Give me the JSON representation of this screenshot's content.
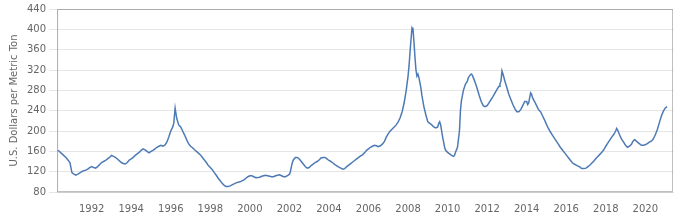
{
  "chart_data": {
    "type": "line",
    "ylabel": "U.S. Dollars per Metric Ton",
    "color": "#4d7ab5",
    "grid": "y",
    "xlim": [
      1990.25,
      2021.4
    ],
    "xticks": [
      1992,
      1994,
      1996,
      1998,
      2000,
      2002,
      2004,
      2006,
      2008,
      2010,
      2012,
      2014,
      2016,
      2018,
      2020
    ],
    "ylim": [
      80,
      440
    ],
    "yticks": [
      80,
      120,
      160,
      200,
      240,
      280,
      320,
      360,
      400,
      440
    ],
    "x": [
      1990.3,
      1990.5,
      1990.7,
      1990.9,
      1991.0,
      1991.1,
      1991.2,
      1991.3,
      1991.5,
      1991.6,
      1991.7,
      1991.8,
      1991.9,
      1992.0,
      1992.1,
      1992.2,
      1992.3,
      1992.5,
      1992.6,
      1992.7,
      1992.8,
      1992.9,
      1993.0,
      1993.1,
      1993.2,
      1993.3,
      1993.5,
      1993.6,
      1993.7,
      1993.8,
      1993.9,
      1994.0,
      1994.1,
      1994.2,
      1994.3,
      1994.4,
      1994.5,
      1994.6,
      1994.7,
      1994.8,
      1994.9,
      1995.0,
      1995.1,
      1995.2,
      1995.3,
      1995.4,
      1995.5,
      1995.6,
      1995.7,
      1995.8,
      1995.9,
      1996.0,
      1996.1,
      1996.15,
      1996.22,
      1996.3,
      1996.4,
      1996.5,
      1996.6,
      1996.7,
      1996.8,
      1996.9,
      1997.0,
      1997.1,
      1997.2,
      1997.3,
      1997.5,
      1997.6,
      1997.7,
      1997.8,
      1997.9,
      1998.0,
      1998.1,
      1998.2,
      1998.3,
      1998.4,
      1998.5,
      1998.6,
      1998.7,
      1998.8,
      1998.9,
      1999.0,
      1999.1,
      1999.2,
      1999.3,
      1999.5,
      1999.6,
      1999.7,
      1999.8,
      1999.9,
      2000.0,
      2000.1,
      2000.2,
      2000.3,
      2000.5,
      2000.6,
      2000.7,
      2000.8,
      2000.9,
      2001.0,
      2001.1,
      2001.2,
      2001.3,
      2001.5,
      2001.6,
      2001.7,
      2001.8,
      2001.9,
      2002.0,
      2002.05,
      2002.1,
      2002.15,
      2002.2,
      2002.3,
      2002.4,
      2002.5,
      2002.6,
      2002.7,
      2002.8,
      2002.9,
      2003.0,
      2003.1,
      2003.2,
      2003.3,
      2003.4,
      2003.5,
      2003.6,
      2003.7,
      2003.8,
      2003.9,
      2004.0,
      2004.1,
      2004.2,
      2004.3,
      2004.5,
      2004.6,
      2004.7,
      2004.8,
      2004.9,
      2005.0,
      2005.1,
      2005.2,
      2005.3,
      2005.4,
      2005.5,
      2005.6,
      2005.7,
      2005.8,
      2005.9,
      2006.0,
      2006.1,
      2006.2,
      2006.3,
      2006.4,
      2006.5,
      2006.6,
      2006.7,
      2006.8,
      2006.9,
      2007.0,
      2007.1,
      2007.2,
      2007.3,
      2007.4,
      2007.5,
      2007.6,
      2007.7,
      2007.8,
      2007.9,
      2008.0,
      2008.05,
      2008.1,
      2008.15,
      2008.2,
      2008.25,
      2008.3,
      2008.35,
      2008.4,
      2008.45,
      2008.5,
      2008.55,
      2008.6,
      2008.65,
      2008.7,
      2008.8,
      2008.9,
      2009.0,
      2009.1,
      2009.2,
      2009.3,
      2009.4,
      2009.5,
      2009.55,
      2009.6,
      2009.65,
      2009.7,
      2009.75,
      2009.8,
      2009.85,
      2009.9,
      2010.0,
      2010.1,
      2010.2,
      2010.3,
      2010.35,
      2010.4,
      2010.5,
      2010.6,
      2010.65,
      2010.7,
      2010.8,
      2010.9,
      2011.0,
      2011.05,
      2011.1,
      2011.15,
      2011.2,
      2011.25,
      2011.3,
      2011.4,
      2011.5,
      2011.6,
      2011.7,
      2011.8,
      2011.9,
      2012.0,
      2012.1,
      2012.2,
      2012.3,
      2012.4,
      2012.5,
      2012.6,
      2012.65,
      2012.7,
      2012.75,
      2012.8,
      2012.9,
      2013.0,
      2013.1,
      2013.2,
      2013.3,
      2013.4,
      2013.5,
      2013.6,
      2013.7,
      2013.8,
      2013.9,
      2014.0,
      2014.05,
      2014.1,
      2014.15,
      2014.2,
      2014.25,
      2014.3,
      2014.4,
      2014.5,
      2014.6,
      2014.7,
      2014.8,
      2014.9,
      2015.0,
      2015.1,
      2015.2,
      2015.3,
      2015.4,
      2015.5,
      2015.6,
      2015.7,
      2015.8,
      2015.9,
      2016.0,
      2016.1,
      2016.2,
      2016.3,
      2016.4,
      2016.5,
      2016.6,
      2016.7,
      2016.75,
      2016.8,
      2016.9,
      2017.0,
      2017.1,
      2017.2,
      2017.3,
      2017.4,
      2017.5,
      2017.6,
      2017.7,
      2017.8,
      2017.9,
      2018.0,
      2018.1,
      2018.2,
      2018.3,
      2018.4,
      2018.5,
      2018.55,
      2018.6,
      2018.65,
      2018.7,
      2018.8,
      2018.9,
      2019.0,
      2019.1,
      2019.2,
      2019.3,
      2019.35,
      2019.4,
      2019.45,
      2019.5,
      2019.6,
      2019.7,
      2019.8,
      2019.9,
      2020.0,
      2020.1,
      2020.2,
      2020.3,
      2020.4,
      2020.5,
      2020.6,
      2020.7,
      2020.8,
      2020.9,
      2021.0,
      2021.1
    ],
    "values": [
      162,
      155,
      148,
      138,
      118,
      115,
      113,
      115,
      120,
      122,
      123,
      125,
      128,
      130,
      128,
      127,
      130,
      138,
      140,
      142,
      145,
      148,
      152,
      150,
      148,
      145,
      138,
      136,
      135,
      138,
      143,
      145,
      148,
      152,
      155,
      158,
      162,
      165,
      163,
      160,
      157,
      160,
      162,
      165,
      168,
      170,
      172,
      170,
      172,
      178,
      188,
      200,
      208,
      215,
      245,
      225,
      212,
      208,
      200,
      192,
      183,
      175,
      170,
      167,
      163,
      160,
      153,
      148,
      143,
      138,
      132,
      128,
      124,
      118,
      113,
      107,
      102,
      97,
      93,
      91,
      91,
      92,
      94,
      96,
      98,
      100,
      102,
      104,
      107,
      110,
      112,
      112,
      110,
      108,
      109,
      111,
      112,
      113,
      112,
      111,
      110,
      110,
      112,
      114,
      112,
      110,
      110,
      112,
      115,
      120,
      130,
      138,
      143,
      148,
      148,
      145,
      140,
      135,
      130,
      127,
      128,
      132,
      135,
      138,
      140,
      143,
      147,
      148,
      148,
      145,
      142,
      140,
      137,
      134,
      129,
      127,
      125,
      126,
      130,
      133,
      136,
      139,
      142,
      145,
      148,
      151,
      153,
      157,
      162,
      165,
      168,
      170,
      172,
      171,
      169,
      171,
      174,
      179,
      188,
      195,
      200,
      204,
      208,
      212,
      218,
      226,
      238,
      255,
      278,
      308,
      328,
      355,
      380,
      403,
      400,
      375,
      345,
      320,
      308,
      312,
      305,
      295,
      285,
      270,
      248,
      232,
      218,
      215,
      212,
      208,
      206,
      208,
      215,
      218,
      212,
      200,
      188,
      178,
      168,
      162,
      158,
      155,
      152,
      150,
      152,
      158,
      168,
      200,
      240,
      260,
      280,
      292,
      298,
      305,
      308,
      310,
      312,
      310,
      305,
      295,
      283,
      270,
      258,
      250,
      248,
      250,
      256,
      262,
      268,
      275,
      282,
      288,
      293,
      298,
      318,
      312,
      298,
      285,
      272,
      262,
      252,
      244,
      238,
      238,
      242,
      250,
      258,
      258,
      252,
      255,
      265,
      275,
      272,
      265,
      258,
      250,
      242,
      238,
      230,
      222,
      213,
      205,
      198,
      192,
      186,
      180,
      174,
      168,
      163,
      158,
      153,
      148,
      143,
      138,
      135,
      133,
      131,
      129,
      127,
      126,
      126,
      127,
      130,
      133,
      137,
      141,
      146,
      150,
      154,
      158,
      163,
      170,
      176,
      182,
      188,
      193,
      200,
      205,
      202,
      197,
      192,
      184,
      178,
      172,
      168,
      170,
      174,
      178,
      181,
      183,
      182,
      178,
      175,
      172,
      172,
      173,
      175,
      178,
      180,
      184,
      192,
      202,
      215,
      228,
      238,
      245,
      248
    ]
  }
}
